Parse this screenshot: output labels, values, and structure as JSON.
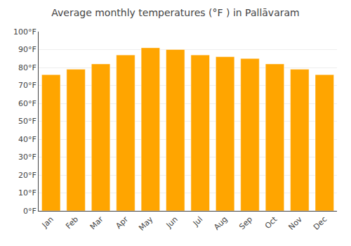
{
  "chart_data": {
    "type": "bar",
    "title": "Average monthly temperatures (°F ) in Pallāvaram",
    "categories": [
      "Jan",
      "Feb",
      "Mar",
      "Apr",
      "May",
      "Jun",
      "Jul",
      "Aug",
      "Sep",
      "Oct",
      "Nov",
      "Dec"
    ],
    "values": [
      76,
      79,
      82,
      87,
      91,
      90,
      87,
      86,
      85,
      82,
      79,
      76
    ],
    "color": "#FFA500",
    "ylim": [
      0,
      100
    ],
    "yticks": [
      {
        "value": 0,
        "label": "0°F"
      },
      {
        "value": 10,
        "label": "10°F"
      },
      {
        "value": 20,
        "label": "20°F"
      },
      {
        "value": 30,
        "label": "30°F"
      },
      {
        "value": 40,
        "label": "40°F"
      },
      {
        "value": 50,
        "label": "50°F"
      },
      {
        "value": 60,
        "label": "60°F"
      },
      {
        "value": 70,
        "label": "70°F"
      },
      {
        "value": 80,
        "label": "80°F"
      },
      {
        "value": 90,
        "label": "90°F"
      },
      {
        "value": 100,
        "label": "100°F"
      }
    ],
    "grid": true
  }
}
